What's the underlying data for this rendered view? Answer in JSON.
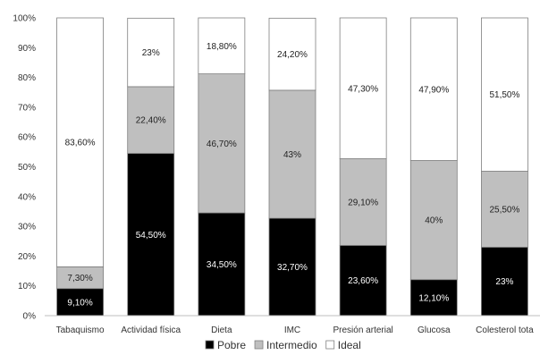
{
  "chart_data": {
    "type": "bar",
    "stacked": true,
    "percent": true,
    "categories": [
      "Tabaquismo",
      "Actividad física",
      "Dieta",
      "IMC",
      "Presión arterial",
      "Glucosa",
      "Colesterol total"
    ],
    "category_display": [
      "Tabaquismo",
      "Actividad física",
      "Dieta",
      "IMC",
      "Presión arterial",
      "Glucosa",
      "Colesterol tota"
    ],
    "series": [
      {
        "name": "Pobre",
        "color": "#000000",
        "label_color": "#ffffff",
        "values": [
          9.1,
          54.5,
          34.5,
          32.7,
          23.6,
          12.1,
          23
        ],
        "labels": [
          "9,10%",
          "54,50%",
          "34,50%",
          "32,70%",
          "23,60%",
          "12,10%",
          "23%"
        ]
      },
      {
        "name": "Intermedio",
        "color": "#bfbfbf",
        "label_color": "#222222",
        "values": [
          7.3,
          22.4,
          46.7,
          43,
          29.1,
          40,
          25.5
        ],
        "labels": [
          "7,30%",
          "22,40%",
          "46,70%",
          "43%",
          "29,10%",
          "40%",
          "25,50%"
        ]
      },
      {
        "name": "Ideal",
        "color": "#ffffff",
        "label_color": "#222222",
        "values": [
          83.6,
          23,
          18.8,
          24.2,
          47.3,
          47.9,
          51.5
        ],
        "labels": [
          "83,60%",
          "23%",
          "18,80%",
          "24,20%",
          "47,30%",
          "47,90%",
          "51,50%"
        ]
      }
    ],
    "ylim": [
      0,
      100
    ],
    "yticks": [
      0,
      10,
      20,
      30,
      40,
      50,
      60,
      70,
      80,
      90,
      100
    ],
    "ytick_labels": [
      "0%",
      "10%",
      "20%",
      "30%",
      "40%",
      "50%",
      "60%",
      "70%",
      "80%",
      "90%",
      "100%"
    ],
    "grid": false,
    "legend_position": "bottom",
    "title": "",
    "xlabel": "",
    "ylabel": ""
  }
}
